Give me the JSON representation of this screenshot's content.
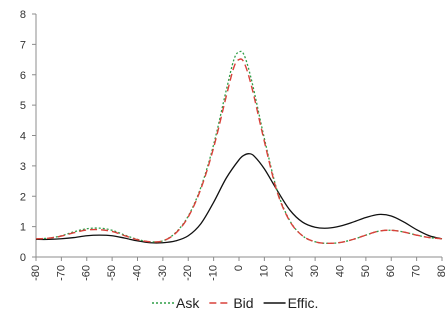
{
  "chart_data": {
    "type": "line",
    "title": "",
    "xlabel": "",
    "ylabel": "",
    "xlim": [
      -80,
      80
    ],
    "ylim": [
      0,
      8
    ],
    "x_ticks": [
      -80,
      -70,
      -60,
      -50,
      -40,
      -30,
      -20,
      -10,
      0,
      10,
      20,
      30,
      40,
      50,
      60,
      70,
      80
    ],
    "y_ticks": [
      0,
      1,
      2,
      3,
      4,
      5,
      6,
      7,
      8
    ],
    "grid": false,
    "legend_position": "bottom",
    "series": [
      {
        "name": "Ask",
        "color": "#2e9e47",
        "dash": "dotted",
        "x": [
          -80,
          -75,
          -70,
          -65,
          -60,
          -55,
          -50,
          -45,
          -40,
          -35,
          -30,
          -25,
          -20,
          -15,
          -10,
          -5,
          -2,
          0,
          2,
          5,
          10,
          15,
          20,
          25,
          30,
          35,
          40,
          45,
          50,
          55,
          60,
          65,
          70,
          75,
          80
        ],
        "y": [
          0.6,
          0.62,
          0.7,
          0.83,
          0.93,
          0.95,
          0.88,
          0.72,
          0.58,
          0.5,
          0.53,
          0.8,
          1.35,
          2.3,
          3.7,
          5.5,
          6.5,
          6.75,
          6.65,
          5.8,
          3.9,
          2.2,
          1.2,
          0.7,
          0.5,
          0.45,
          0.48,
          0.58,
          0.72,
          0.85,
          0.88,
          0.82,
          0.72,
          0.64,
          0.6
        ]
      },
      {
        "name": "Bid",
        "color": "#d9413a",
        "dash": "dashed",
        "x": [
          -80,
          -75,
          -70,
          -65,
          -60,
          -55,
          -50,
          -45,
          -40,
          -35,
          -30,
          -25,
          -20,
          -15,
          -10,
          -5,
          -2,
          0,
          2,
          5,
          10,
          15,
          20,
          25,
          30,
          35,
          40,
          45,
          50,
          55,
          60,
          65,
          70,
          75,
          80
        ],
        "y": [
          0.6,
          0.62,
          0.69,
          0.8,
          0.89,
          0.9,
          0.84,
          0.7,
          0.57,
          0.5,
          0.53,
          0.78,
          1.32,
          2.25,
          3.6,
          5.3,
          6.25,
          6.5,
          6.4,
          5.6,
          3.8,
          2.15,
          1.18,
          0.7,
          0.5,
          0.45,
          0.48,
          0.58,
          0.72,
          0.85,
          0.88,
          0.82,
          0.72,
          0.64,
          0.6
        ]
      },
      {
        "name": "Effic.",
        "color": "#111111",
        "dash": "solid",
        "x": [
          -80,
          -75,
          -70,
          -65,
          -60,
          -55,
          -50,
          -45,
          -40,
          -35,
          -30,
          -25,
          -20,
          -15,
          -10,
          -5,
          0,
          2,
          4,
          6,
          10,
          15,
          20,
          25,
          30,
          35,
          40,
          45,
          50,
          55,
          60,
          65,
          70,
          75,
          80
        ],
        "y": [
          0.58,
          0.58,
          0.6,
          0.64,
          0.7,
          0.72,
          0.7,
          0.62,
          0.53,
          0.47,
          0.47,
          0.53,
          0.7,
          1.1,
          1.8,
          2.6,
          3.2,
          3.35,
          3.4,
          3.32,
          2.9,
          2.2,
          1.55,
          1.15,
          0.98,
          0.95,
          1.02,
          1.15,
          1.3,
          1.4,
          1.35,
          1.15,
          0.9,
          0.7,
          0.6
        ]
      }
    ]
  }
}
